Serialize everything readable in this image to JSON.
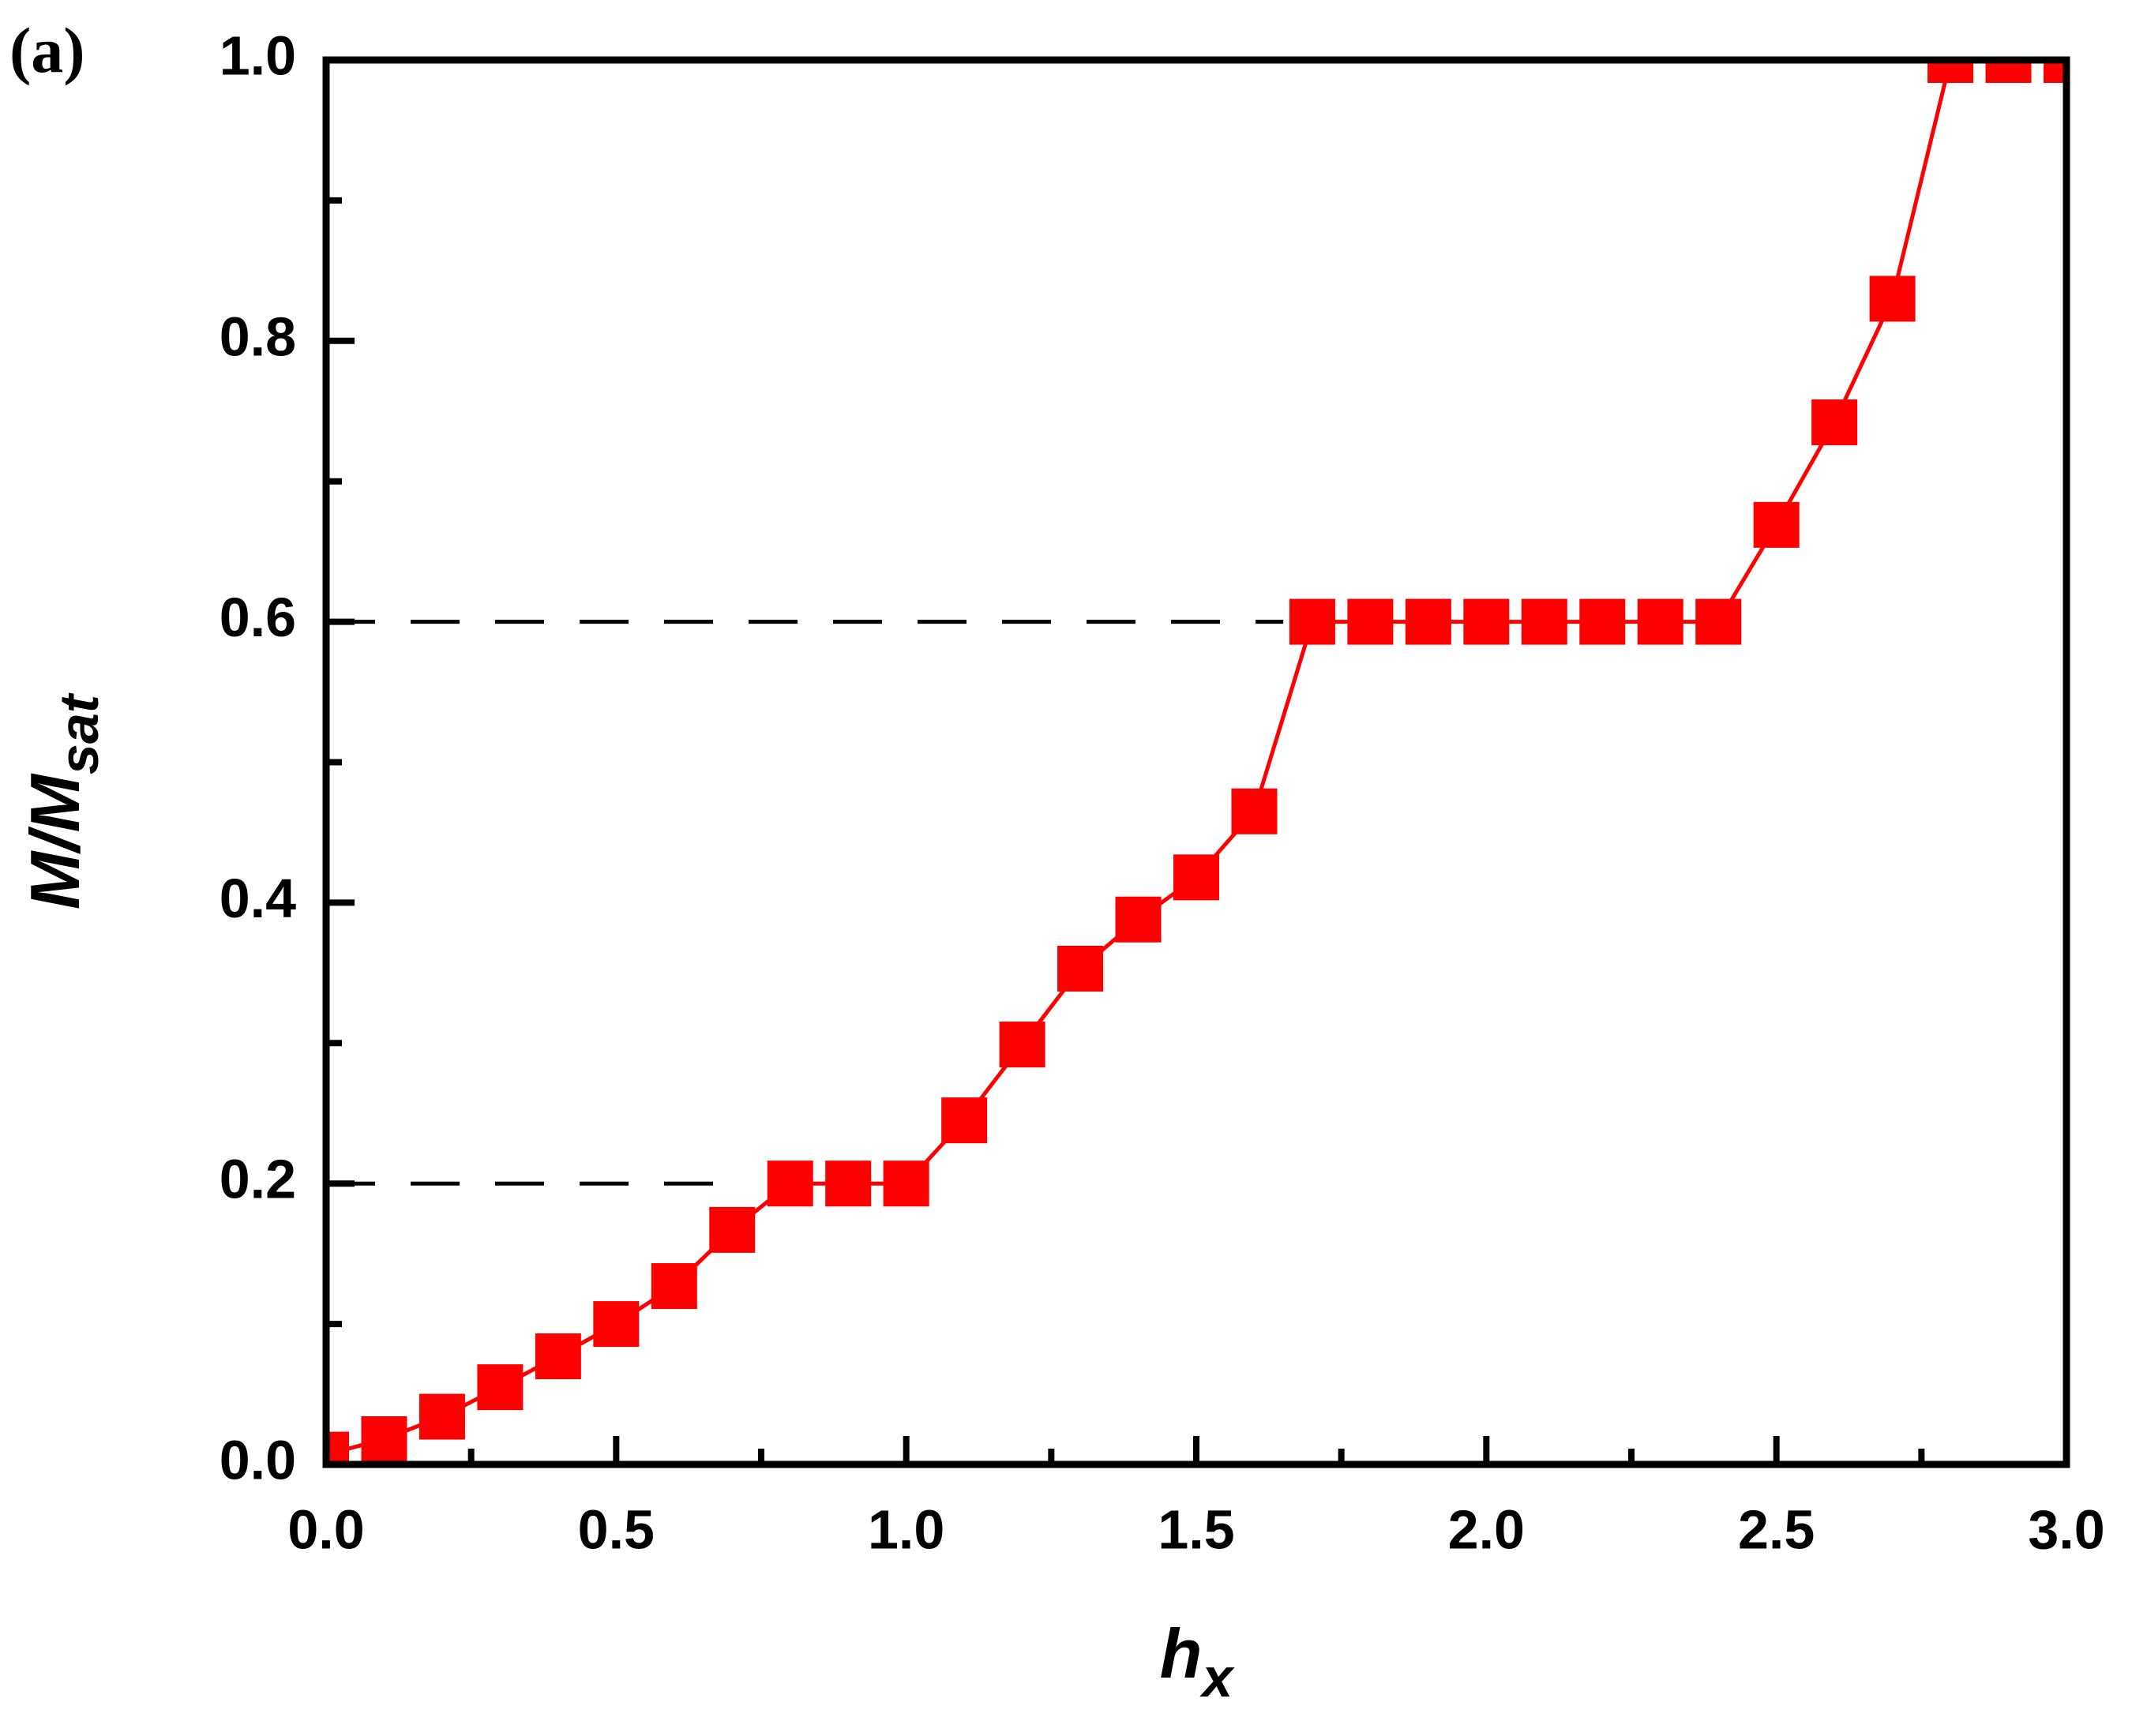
{
  "chart_data": {
    "type": "line",
    "panel_label": "(a)",
    "xlabel_main": "h",
    "xlabel_sub": "x",
    "ylabel_main": "M/M",
    "ylabel_sub": "sat",
    "x": [
      0,
      0.1,
      0.2,
      0.3,
      0.4,
      0.5,
      0.6,
      0.7,
      0.8,
      0.9,
      1.0,
      1.1,
      1.2,
      1.3,
      1.4,
      1.5,
      1.6,
      1.7,
      1.8,
      1.9,
      2.0,
      2.1,
      2.2,
      2.3,
      2.4,
      2.5,
      2.6,
      2.7,
      2.8,
      2.9,
      3.0
    ],
    "series": [
      {
        "color": "#ff0000",
        "values": [
          0.007,
          0.018,
          0.034,
          0.055,
          0.077,
          0.1,
          0.127,
          0.167,
          0.2,
          0.2,
          0.2,
          0.245,
          0.299,
          0.353,
          0.388,
          0.418,
          0.465,
          0.6,
          0.6,
          0.6,
          0.6,
          0.6,
          0.6,
          0.6,
          0.6,
          0.669,
          0.742,
          0.83,
          1.0,
          1.0,
          1.0
        ]
      }
    ],
    "reference_lines": [
      {
        "y": 0.2,
        "xlim": [
          0,
          0.68
        ]
      },
      {
        "y": 0.6,
        "xlim": [
          0,
          1.65
        ]
      }
    ],
    "xlim": [
      0,
      3.0
    ],
    "ylim": [
      0,
      1.0
    ],
    "xticks": [
      {
        "value": 0,
        "label": "0.0"
      },
      {
        "value": 0.5,
        "label": "0.5"
      },
      {
        "value": 1,
        "label": "1.0"
      },
      {
        "value": 1.5,
        "label": "1.5"
      },
      {
        "value": 2,
        "label": "2.0"
      },
      {
        "value": 2.5,
        "label": "2.5"
      },
      {
        "value": 3,
        "label": "3.0"
      }
    ],
    "yticks": [
      {
        "value": 0,
        "label": "0.0"
      },
      {
        "value": 0.2,
        "label": "0.2"
      },
      {
        "value": 0.4,
        "label": "0.4"
      },
      {
        "value": 0.6,
        "label": "0.6"
      },
      {
        "value": 0.8,
        "label": "0.8"
      },
      {
        "value": 1,
        "label": "1.0"
      }
    ],
    "xminorticks": [
      0.25,
      0.75,
      1.25,
      1.75,
      2.25,
      2.75
    ],
    "yminorticks": [
      0.1,
      0.3,
      0.5,
      0.7,
      0.9
    ]
  }
}
